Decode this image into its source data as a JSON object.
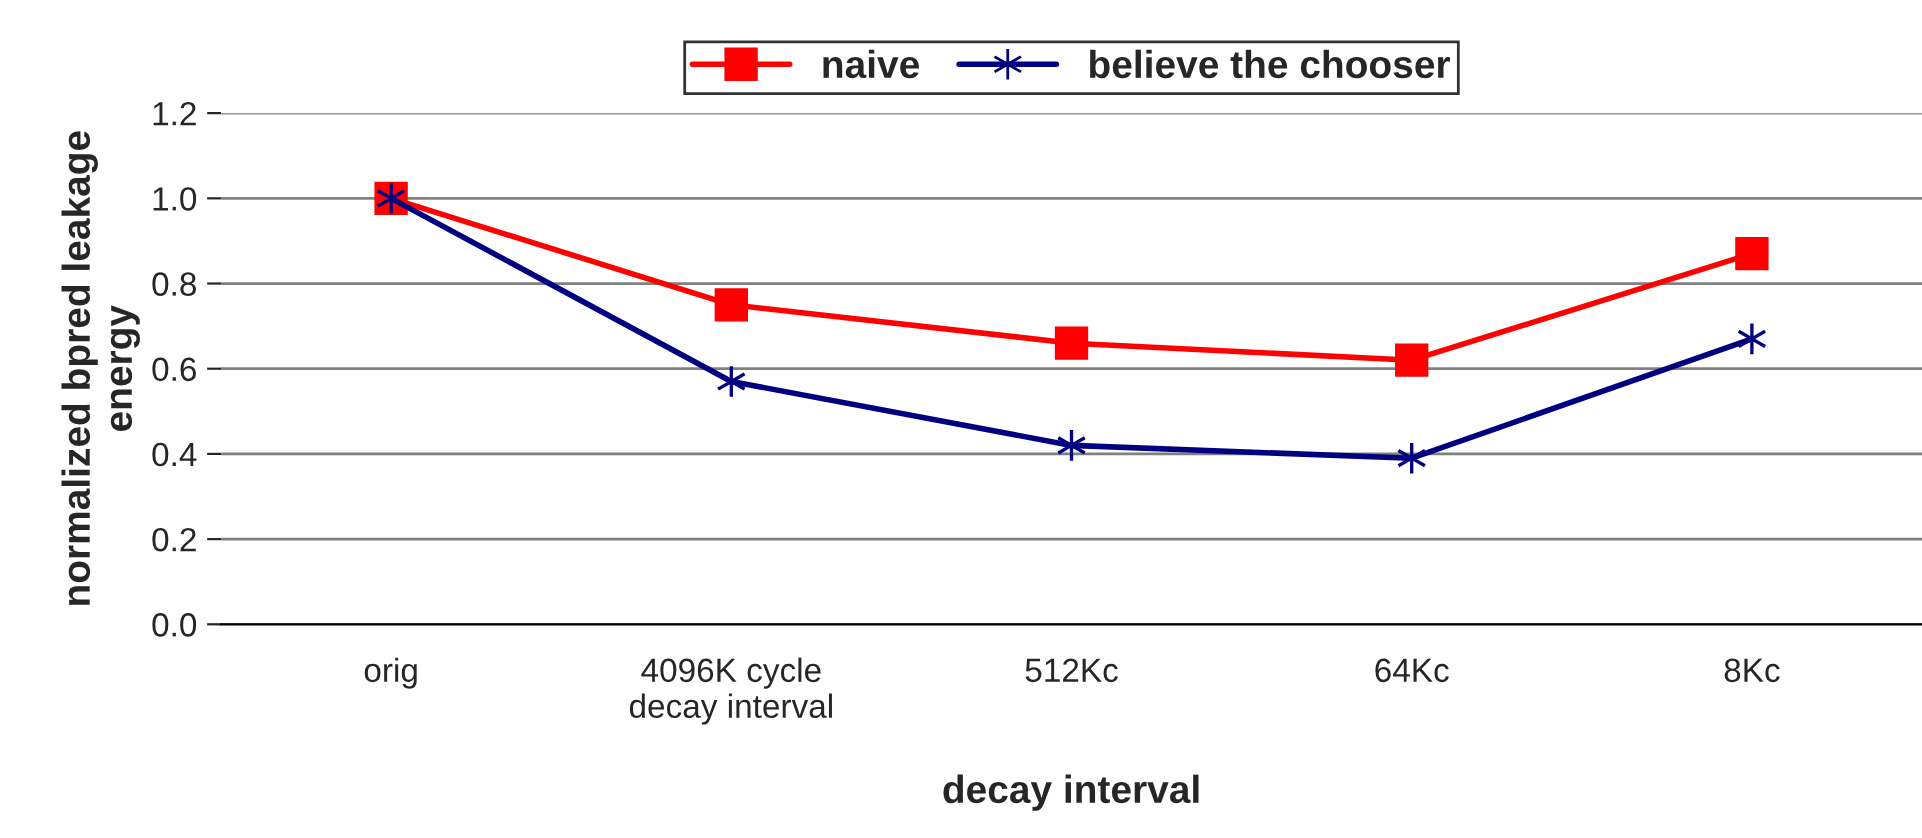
{
  "chart_data": {
    "type": "line",
    "xlabel": "decay interval",
    "ylabel": "normalized bpred leakage\nenergy",
    "categories": [
      "orig",
      "4096K cycle\ndecay interval",
      "512Kc",
      "64Kc",
      "8Kc"
    ],
    "series": [
      {
        "name": "naive",
        "color": "#ff0000",
        "marker": "square",
        "values": [
          1.0,
          0.75,
          0.66,
          0.62,
          0.87
        ]
      },
      {
        "name": "believe the chooser",
        "color": "#000080",
        "marker": "cross",
        "values": [
          1.0,
          0.57,
          0.42,
          0.39,
          0.67
        ]
      }
    ],
    "ylim": [
      0,
      1.2
    ],
    "yticks": [
      {
        "value": 0,
        "label": "0.0"
      },
      {
        "value": 0.2,
        "label": "0.2"
      },
      {
        "value": 0.4,
        "label": "0.4"
      },
      {
        "value": 0.6,
        "label": "0.6"
      },
      {
        "value": 0.8,
        "label": "0.8"
      },
      {
        "value": 1.0,
        "label": "1.0"
      },
      {
        "value": 1.2,
        "label": "1.2"
      }
    ],
    "grid": "y",
    "legend": "top",
    "line_style": "solid"
  }
}
